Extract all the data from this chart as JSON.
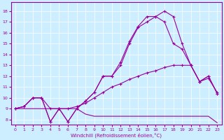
{
  "xlabel": "Windchill (Refroidissement éolien,°C)",
  "bg_color": "#cceeff",
  "line_color": "#990099",
  "grid_color": "#ffffff",
  "xlim": [
    -0.5,
    23.5
  ],
  "ylim": [
    7.5,
    18.8
  ],
  "xticks": [
    0,
    1,
    2,
    3,
    4,
    5,
    6,
    7,
    8,
    9,
    10,
    11,
    12,
    13,
    14,
    15,
    16,
    17,
    18,
    19,
    20,
    21,
    22,
    23
  ],
  "yticks": [
    8,
    9,
    10,
    11,
    12,
    13,
    14,
    15,
    16,
    17,
    18
  ],
  "line1_no_marker": {
    "x": [
      0,
      1,
      2,
      3,
      4,
      5,
      6,
      7,
      8,
      9,
      10,
      11,
      12,
      13,
      14,
      15,
      16,
      17,
      18,
      19,
      20,
      21,
      22,
      23
    ],
    "y": [
      9.0,
      9.0,
      9.0,
      9.0,
      9.0,
      9.0,
      9.0,
      9.0,
      8.5,
      8.3,
      8.3,
      8.3,
      8.3,
      8.3,
      8.3,
      8.3,
      8.3,
      8.3,
      8.3,
      8.3,
      8.3,
      8.3,
      8.3,
      7.7
    ]
  },
  "line2_rising": {
    "x": [
      0,
      1,
      2,
      3,
      4,
      5,
      6,
      7,
      8,
      9,
      10,
      11,
      12,
      13,
      14,
      15,
      16,
      17,
      18,
      19,
      20,
      21,
      22,
      23
    ],
    "y": [
      9.0,
      9.2,
      10.0,
      10.0,
      9.0,
      9.0,
      9.0,
      9.2,
      9.5,
      10.0,
      10.5,
      11.0,
      11.3,
      11.7,
      12.0,
      12.3,
      12.5,
      12.8,
      13.0,
      13.0,
      13.0,
      11.5,
      11.8,
      10.5
    ]
  },
  "line3_peak": {
    "x": [
      0,
      1,
      2,
      3,
      4,
      5,
      6,
      7,
      8,
      9,
      10,
      11,
      12,
      13,
      14,
      15,
      16,
      17,
      18,
      19,
      20,
      21,
      22,
      23
    ],
    "y": [
      9.0,
      9.2,
      10.0,
      10.0,
      7.8,
      9.0,
      7.8,
      9.0,
      9.7,
      10.5,
      12.0,
      12.0,
      13.0,
      15.0,
      16.5,
      17.0,
      17.5,
      17.0,
      15.0,
      14.5,
      13.0,
      11.5,
      12.0,
      10.4
    ]
  },
  "line4_top": {
    "x": [
      0,
      1,
      2,
      3,
      4,
      5,
      6,
      7,
      8,
      9,
      10,
      11,
      12,
      13,
      14,
      15,
      16,
      17,
      18,
      19,
      20,
      21,
      22,
      23
    ],
    "y": [
      9.0,
      9.2,
      10.0,
      10.0,
      7.8,
      9.0,
      7.8,
      9.0,
      9.7,
      10.5,
      12.0,
      12.0,
      13.3,
      15.2,
      16.6,
      17.5,
      17.5,
      18.0,
      17.5,
      15.0,
      13.0,
      11.5,
      12.0,
      10.4
    ]
  }
}
